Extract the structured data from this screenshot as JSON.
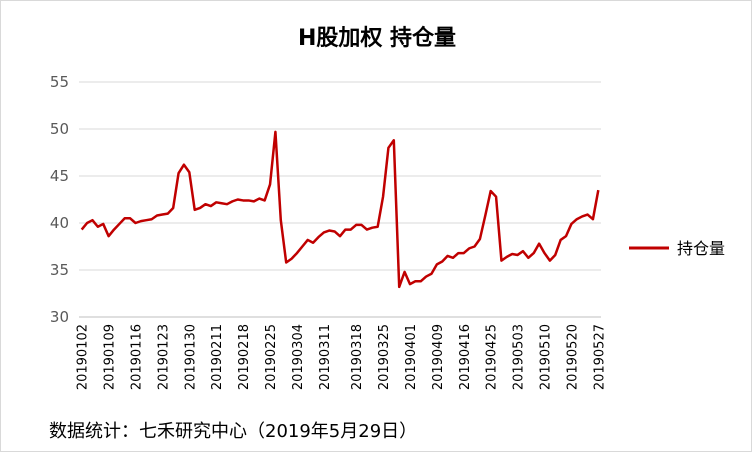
{
  "source_note": "数据统计：七禾研究中心（2019年5月29日）",
  "chart_data": {
    "type": "line",
    "title": "H股加权 持仓量",
    "xlabel": "",
    "ylabel": "",
    "ylim": [
      30,
      55
    ],
    "yticks": [
      30,
      35,
      40,
      45,
      50,
      55
    ],
    "grid": true,
    "legend_position": "right",
    "x_tick_labels": [
      "20190102",
      "20190109",
      "20190116",
      "20190123",
      "20190130",
      "20190211",
      "20190218",
      "20190225",
      "20190304",
      "20190311",
      "20190318",
      "20190325",
      "20190401",
      "20190409",
      "20190416",
      "20190425",
      "20190503",
      "20190510",
      "20190520",
      "20190527"
    ],
    "series": [
      {
        "name": "持仓量",
        "color": "#C00000",
        "values": [
          39.3,
          40.0,
          40.3,
          39.6,
          39.9,
          38.6,
          39.3,
          39.9,
          40.5,
          40.5,
          40.0,
          40.2,
          40.3,
          40.4,
          40.8,
          40.9,
          41.0,
          41.6,
          45.3,
          46.2,
          45.4,
          41.4,
          41.6,
          42.0,
          41.8,
          42.2,
          42.1,
          42.0,
          42.3,
          42.5,
          42.4,
          42.4,
          42.3,
          42.6,
          42.4,
          44.1,
          49.7,
          40.3,
          35.8,
          36.2,
          36.8,
          37.5,
          38.2,
          37.9,
          38.5,
          39.0,
          39.2,
          39.1,
          38.6,
          39.3,
          39.3,
          39.8,
          39.8,
          39.3,
          39.5,
          39.6,
          42.8,
          48.0,
          48.8,
          33.2,
          34.8,
          33.5,
          33.8,
          33.8,
          34.3,
          34.6,
          35.6,
          35.9,
          36.5,
          36.3,
          36.8,
          36.8,
          37.3,
          37.5,
          38.3,
          40.8,
          43.4,
          42.8,
          36.0,
          36.4,
          36.7,
          36.6,
          37.0,
          36.3,
          36.8,
          37.8,
          36.8,
          36.0,
          36.6,
          38.2,
          38.6,
          39.9,
          40.4,
          40.7,
          40.9,
          40.4,
          43.5
        ]
      }
    ]
  }
}
